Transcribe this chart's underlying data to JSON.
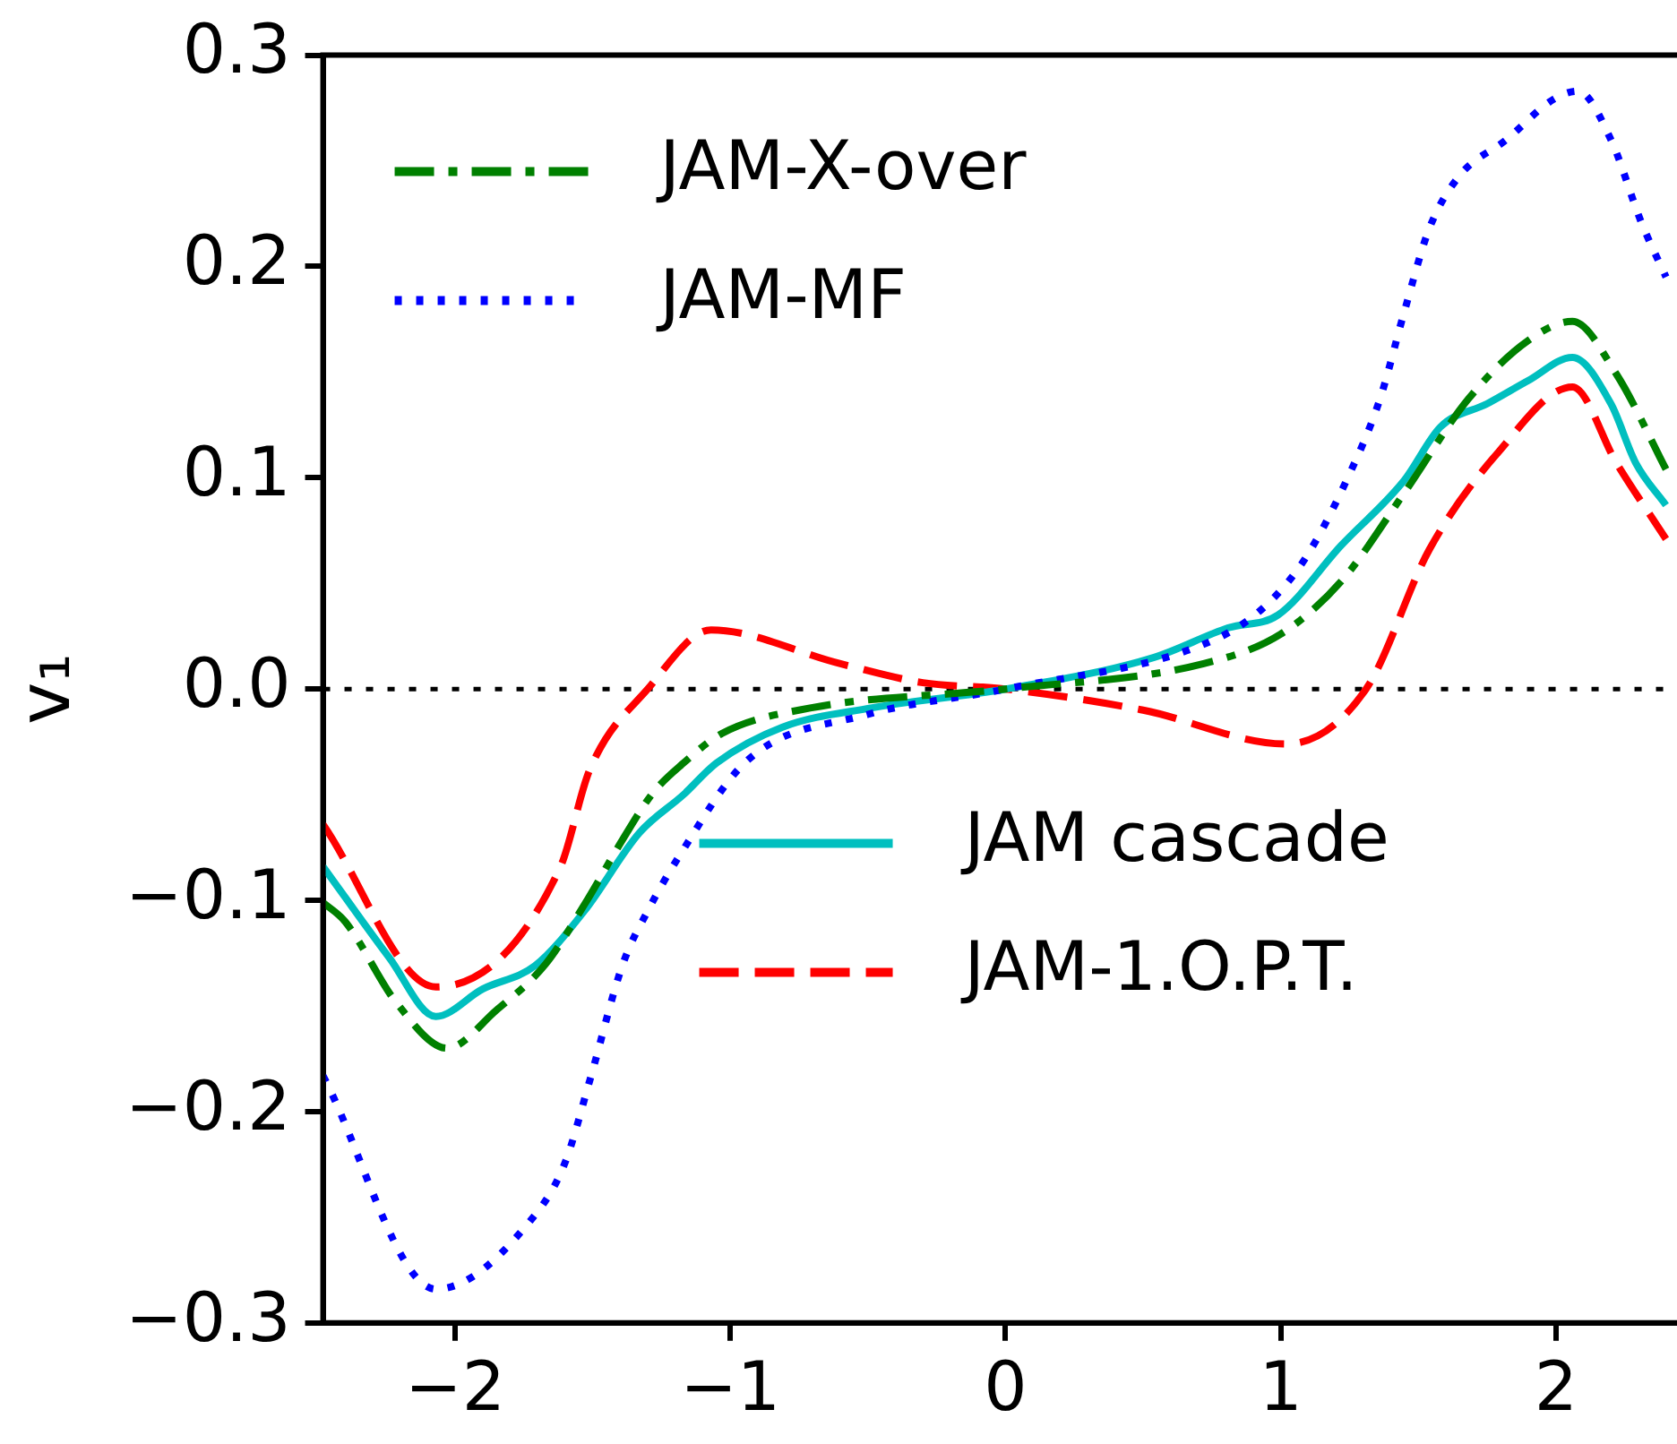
{
  "chart_data": {
    "type": "line",
    "ylabel": "v₁",
    "xlim": [
      -2.48,
      2.44
    ],
    "ylim": [
      -0.3,
      0.3
    ],
    "xticks": [
      -2,
      -1,
      0,
      1,
      2
    ],
    "yticks": [
      -0.3,
      -0.2,
      -0.1,
      {
        "value": 0,
        "label": "0.0"
      },
      0.1,
      0.2,
      0.3
    ],
    "grid": false,
    "legend": "top left",
    "marker": "none",
    "ref_lines": [
      {
        "axis": "y",
        "value": 0,
        "color": "#000000",
        "line_style": "dotted"
      }
    ],
    "series": [
      {
        "name": "JAM-X-over",
        "color": "#008000",
        "line_style": "dashdot",
        "x": [
          -2.48,
          -2.4,
          -2.21,
          -2.03,
          -1.85,
          -1.67,
          -1.53,
          -1.39,
          -1.28,
          -1.17,
          -1.03,
          -0.71,
          0,
          0.72,
          1.0,
          1.22,
          1.45,
          1.68,
          1.9,
          2.06,
          2.22,
          2.4
        ],
        "values": [
          -0.101,
          -0.11,
          -0.149,
          -0.17,
          -0.152,
          -0.13,
          -0.102,
          -0.071,
          -0.049,
          -0.035,
          -0.021,
          -0.009,
          0,
          0.012,
          0.026,
          0.051,
          0.093,
          0.137,
          0.165,
          0.174,
          0.149,
          0.104
        ]
      },
      {
        "name": "JAM-MF",
        "color": "#0000ff",
        "line_style": "dotted",
        "x": [
          -2.48,
          -2.07,
          -1.71,
          -1.6,
          -1.51,
          -1.39,
          -1.3,
          -1.19,
          -0.94,
          -0.5,
          0,
          0.77,
          0.95,
          1.09,
          1.24,
          1.36,
          1.45,
          1.54,
          1.65,
          1.82,
          1.99,
          2.08,
          2.2,
          2.31,
          2.4
        ],
        "values": [
          -0.183,
          -0.284,
          -0.249,
          -0.224,
          -0.185,
          -0.13,
          -0.105,
          -0.08,
          -0.034,
          -0.012,
          0,
          0.024,
          0.04,
          0.062,
          0.099,
          0.137,
          0.179,
          0.218,
          0.243,
          0.26,
          0.279,
          0.283,
          0.26,
          0.221,
          0.195
        ]
      },
      {
        "name": "JAM cascade",
        "color": "#00bfbf",
        "line_style": "solid",
        "x": [
          -2.48,
          -2.24,
          -2.07,
          -1.9,
          -1.71,
          -1.53,
          -1.33,
          -1.17,
          -1.05,
          -0.81,
          -0.49,
          0,
          0.54,
          0.81,
          0.99,
          1.22,
          1.45,
          1.58,
          1.75,
          1.9,
          2.06,
          2.2,
          2.29,
          2.4
        ],
        "values": [
          -0.084,
          -0.127,
          -0.155,
          -0.142,
          -0.131,
          -0.105,
          -0.068,
          -0.05,
          -0.035,
          -0.018,
          -0.009,
          0,
          0.015,
          0.029,
          0.035,
          0.068,
          0.099,
          0.124,
          0.135,
          0.146,
          0.157,
          0.135,
          0.107,
          0.087
        ]
      },
      {
        "name": "JAM-1.O.P.T.",
        "color": "#ff0000",
        "line_style": "dashed",
        "x": [
          -2.48,
          -2.07,
          -1.62,
          -1.51,
          -1.3,
          -1.07,
          -0.6,
          -0.3,
          0,
          0.5,
          1.02,
          1.31,
          1.54,
          1.79,
          2.06,
          2.22,
          2.4
        ],
        "values": [
          -0.064,
          -0.141,
          -0.085,
          -0.038,
          0,
          0.028,
          0.012,
          0.003,
          0,
          -0.01,
          -0.026,
          0,
          0.066,
          0.112,
          0.143,
          0.107,
          0.071
        ]
      }
    ]
  }
}
